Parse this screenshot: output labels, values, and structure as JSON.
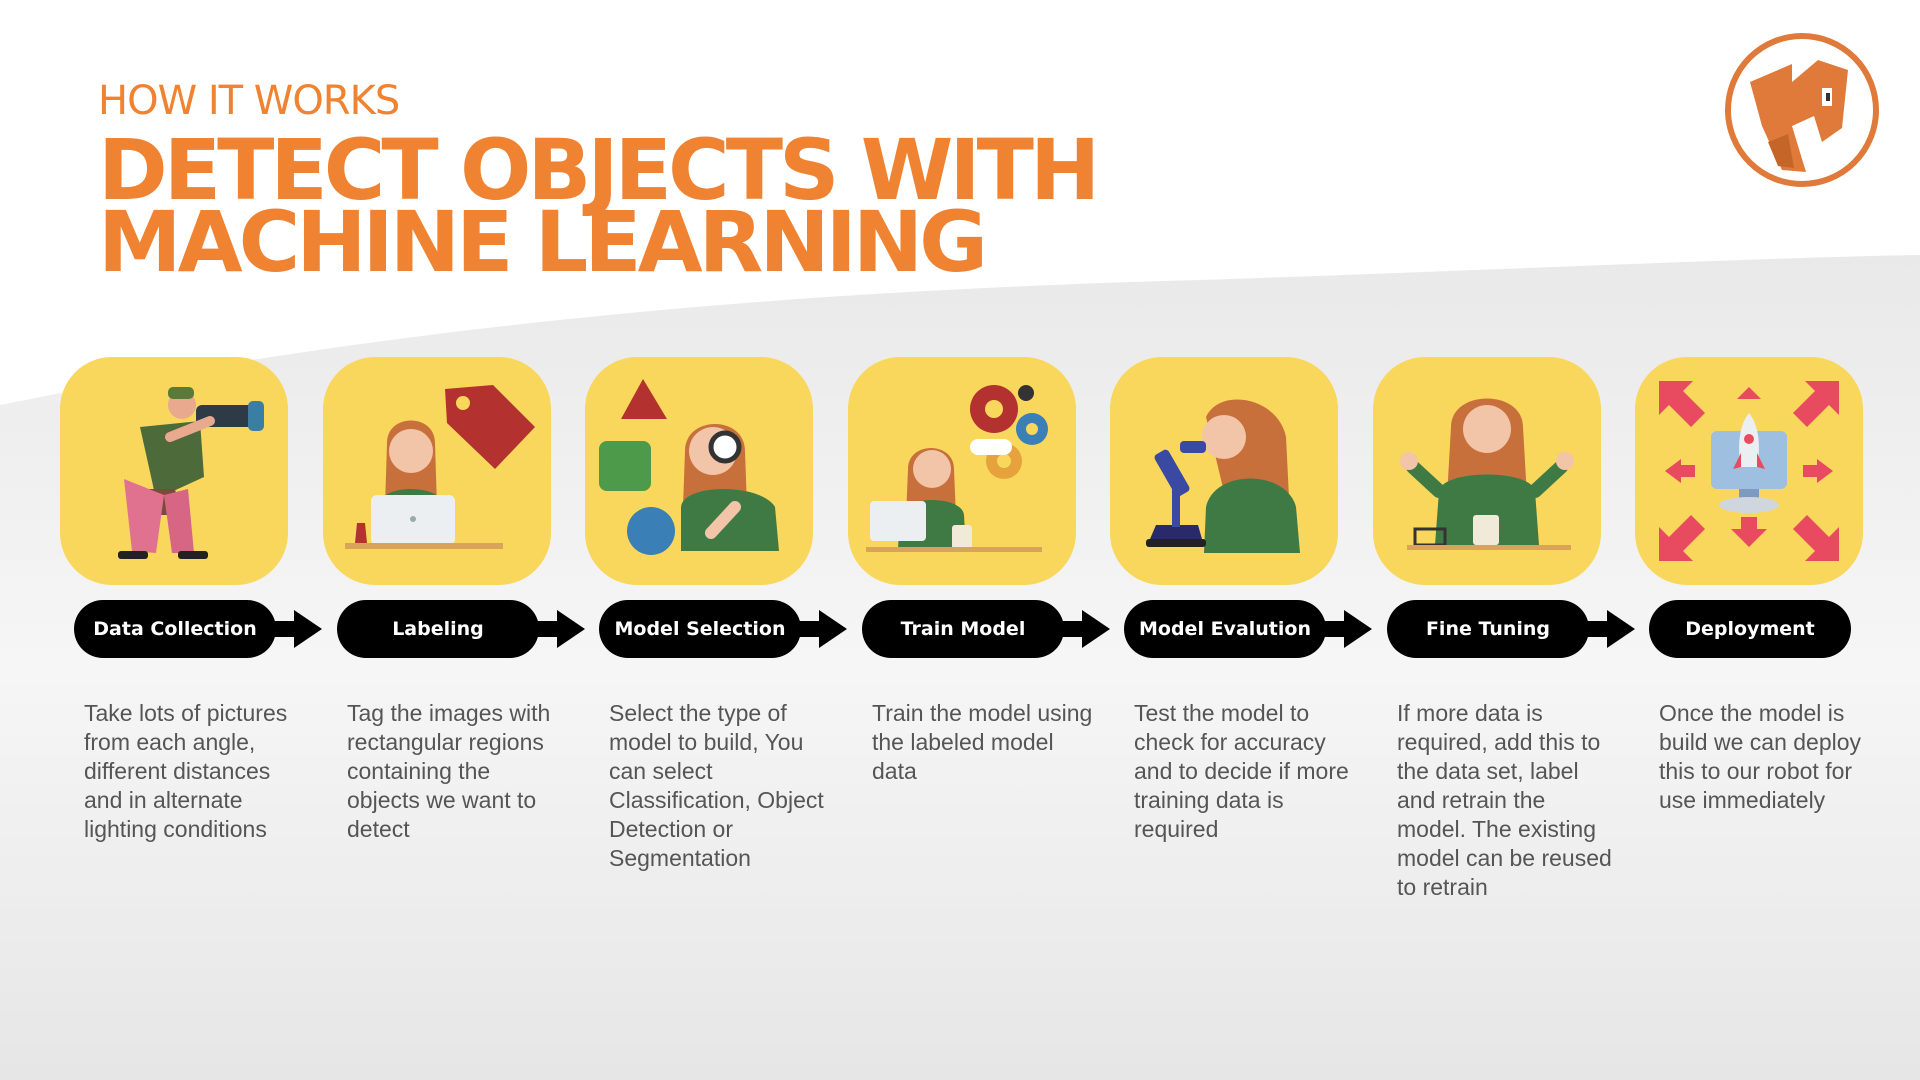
{
  "header": {
    "eyebrow": "HOW IT WORKS",
    "title_line1": "DETECT OBJECTS WITH",
    "title_line2": "MACHINE LEARNING"
  },
  "colors": {
    "accent": "#ef8332",
    "tile": "#f8d75c",
    "pill": "#000000",
    "body_text": "#555555"
  },
  "steps": [
    {
      "label": "Data Collection",
      "icon": "photographer-icon",
      "description": "Take lots of pictures from each angle, different distances and in alternate lighting conditions"
    },
    {
      "label": "Labeling",
      "icon": "label-tag-icon",
      "description": "Tag the images with rectangular regions containing the objects we want to detect"
    },
    {
      "label": "Model Selection",
      "icon": "shapes-magnifier-icon",
      "description": "Select the type of model to build, You can select Classification, Object Detection or Segmentation"
    },
    {
      "label": "Train Model",
      "icon": "gears-laptop-icon",
      "description": "Train the model using the labeled model data"
    },
    {
      "label": "Model Evalution",
      "icon": "microscope-icon",
      "description": "Test the model to check for accuracy and to decide if more training data is required"
    },
    {
      "label": "Fine Tuning",
      "icon": "tuning-person-icon",
      "description": "If more data is required, add this to the data set, label and retrain the model. The existing model can be reused to retrain"
    },
    {
      "label": "Deployment",
      "icon": "rocket-deploy-icon",
      "description": "Once the model is build we can deploy this to our robot for use immediately"
    }
  ]
}
